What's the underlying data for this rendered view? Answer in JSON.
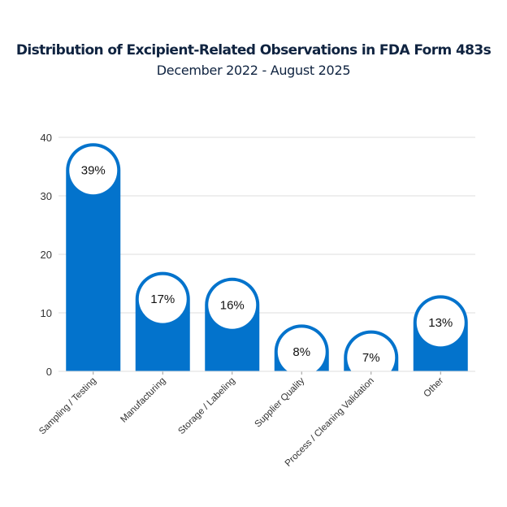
{
  "chart_data": {
    "type": "bar",
    "title": "Distribution of Excipient-Related Observations in FDA Form 483s",
    "subtitle": "December 2022 - August 2025",
    "xlabel": "",
    "ylabel": "",
    "categories": [
      "Sampling / Testing",
      "Manufacturing",
      "Storage / Labeling",
      "Supplier Quality",
      "Process / Cleaning Validation",
      "Other"
    ],
    "values": [
      39,
      17,
      16,
      8,
      7,
      13
    ],
    "data_labels": [
      "39%",
      "17%",
      "16%",
      "8%",
      "7%",
      "13%"
    ],
    "ylim": [
      0,
      40
    ],
    "yticks": [
      0,
      10,
      20,
      30,
      40
    ],
    "grid": true,
    "legend": "none",
    "bar_color": "#0373cc"
  }
}
